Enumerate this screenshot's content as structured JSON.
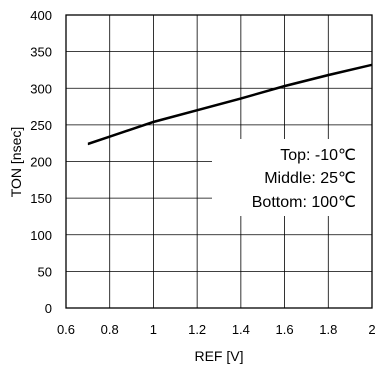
{
  "chart_data": {
    "type": "line",
    "title": "",
    "xlabel": "REF [V]",
    "ylabel": "TON [nsec]",
    "xlim": [
      0.6,
      2.0
    ],
    "ylim": [
      0,
      400
    ],
    "x_ticks": [
      0.6,
      0.8,
      1,
      1.2,
      1.4,
      1.6,
      1.8,
      2
    ],
    "x_tick_labels": [
      "0.6",
      "0.8",
      "1",
      "1.2",
      "1.4",
      "1.6",
      "1.8",
      "2"
    ],
    "y_ticks": [
      0,
      50,
      100,
      150,
      200,
      250,
      300,
      350,
      400
    ],
    "y_tick_labels": [
      "0",
      "50",
      "100",
      "150",
      "200",
      "250",
      "300",
      "350",
      "400"
    ],
    "grid": true,
    "series": [
      {
        "x": [
          0.7,
          0.8,
          1.0,
          1.2,
          1.4,
          1.6,
          1.8,
          2.0
        ],
        "y": [
          225,
          235,
          255,
          271,
          287,
          304,
          319,
          333
        ]
      },
      {
        "x": [
          0.7,
          0.8,
          1.0,
          1.2,
          1.4,
          1.6,
          1.8,
          2.0
        ],
        "y": [
          224,
          234,
          254,
          270,
          286,
          303,
          318,
          332
        ]
      },
      {
        "x": [
          0.7,
          0.8,
          1.0,
          1.2,
          1.4,
          1.6,
          1.8,
          2.0
        ],
        "y": [
          223,
          233,
          253,
          269,
          285,
          302,
          317,
          331
        ]
      }
    ],
    "annotations": [
      "Top: -10℃",
      "Middle: 25℃",
      "Bottom: 100℃"
    ],
    "line_color": "#000000",
    "grid_color": "#000000"
  }
}
